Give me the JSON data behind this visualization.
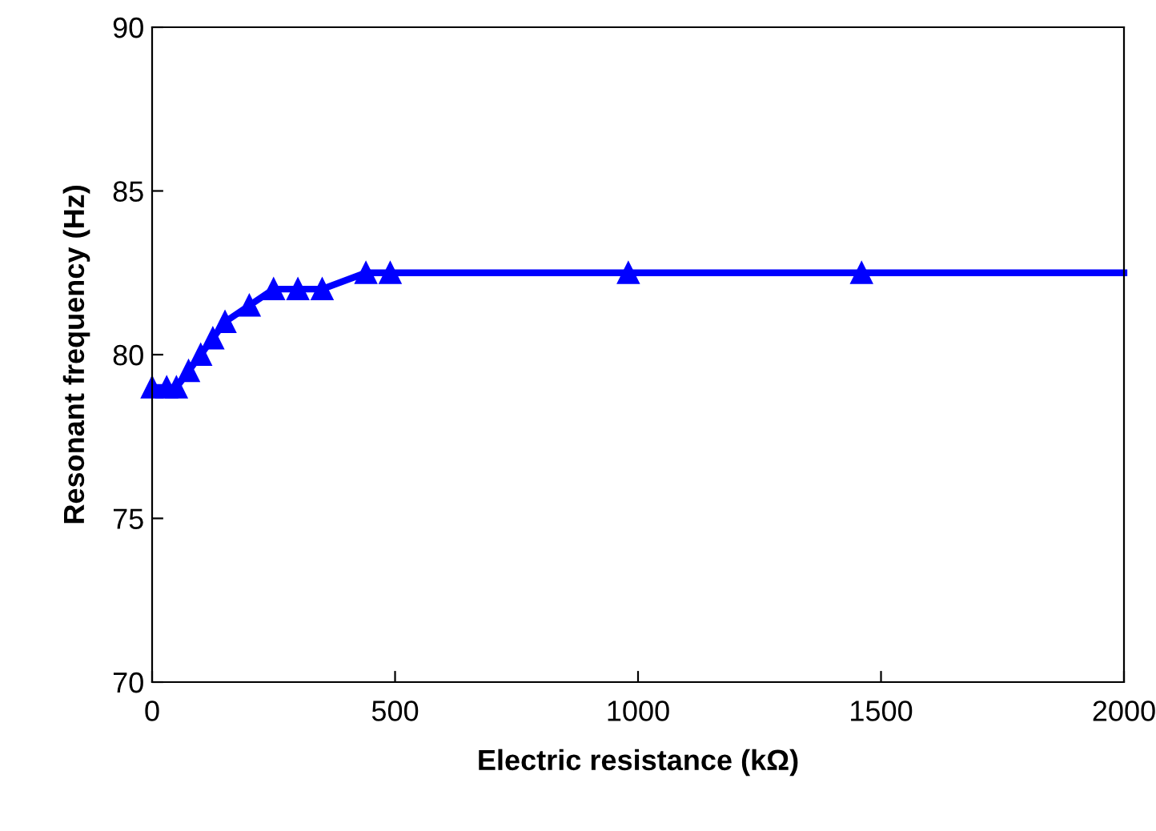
{
  "chart_data": {
    "type": "line",
    "xlabel": "Electric resistance (kΩ)",
    "ylabel": "Resonant frequency (Hz)",
    "xlim": [
      0,
      2000
    ],
    "xticks": [
      0,
      500,
      1000,
      1500,
      2000
    ],
    "ylim": [
      70,
      90
    ],
    "yticks": [
      70,
      75,
      80,
      85,
      90
    ],
    "grid": false,
    "legend": false,
    "marker": "triangle",
    "line_style": "solid",
    "series": [
      {
        "color": "#0000ff",
        "x": [
          0,
          30,
          50,
          75,
          100,
          125,
          150,
          200,
          250,
          300,
          350,
          440,
          490,
          980,
          1460,
          2000
        ],
        "values": [
          79,
          79,
          79,
          79.5,
          80,
          80.5,
          81,
          81.5,
          82,
          82,
          82,
          82.5,
          82.5,
          82.5,
          82.5,
          82.5
        ]
      }
    ]
  }
}
